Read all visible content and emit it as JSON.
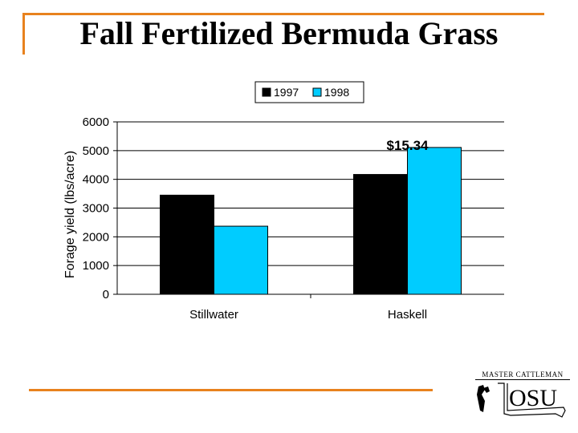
{
  "slide": {
    "title": "Fall Fertilized Bermuda Grass",
    "logo_caption": "MASTER CATTLEMAN",
    "logo_text": "OSU"
  },
  "colors": {
    "accent_line": "#e8821e",
    "series_1997": "#000000",
    "series_1998": "#00ccff"
  },
  "chart_data": {
    "type": "bar",
    "categories": [
      "Stillwater",
      "Haskell"
    ],
    "series": [
      {
        "name": "1997",
        "values": [
          3450,
          4170
        ],
        "color": "#000000"
      },
      {
        "name": "1998",
        "values": [
          2370,
          5110
        ],
        "color": "#00ccff"
      }
    ],
    "ylabel": "Forage yield (lbs/acre)",
    "xlabel": "",
    "ylim": [
      0,
      6000
    ],
    "yticks": [
      0,
      1000,
      2000,
      3000,
      4000,
      5000,
      6000
    ],
    "grid": true,
    "legend_position": "top",
    "annotations": [
      {
        "text": "$15.34",
        "category": "Haskell"
      }
    ]
  }
}
